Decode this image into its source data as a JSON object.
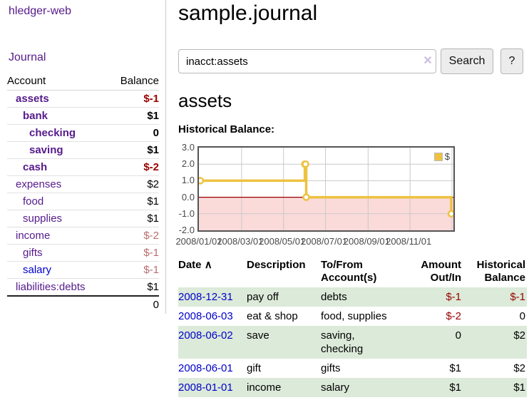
{
  "sidebar": {
    "app_title": "hledger-web",
    "nav": {
      "journal": "Journal"
    },
    "accounts_table": {
      "headers": {
        "account": "Account",
        "balance": "Balance"
      },
      "rows": [
        {
          "account": "assets",
          "balance": "$-1"
        },
        {
          "account": "bank",
          "balance": "$1"
        },
        {
          "account": "checking",
          "balance": "0"
        },
        {
          "account": "saving",
          "balance": "$1"
        },
        {
          "account": "cash",
          "balance": "$-2"
        },
        {
          "account": "expenses",
          "balance": "$2"
        },
        {
          "account": "food",
          "balance": "$1"
        },
        {
          "account": "supplies",
          "balance": "$1"
        },
        {
          "account": "income",
          "balance": "$-2"
        },
        {
          "account": "gifts",
          "balance": "$-1"
        },
        {
          "account": "salary",
          "balance": "$-1"
        },
        {
          "account": "liabilities:debts",
          "balance": "$1"
        }
      ],
      "total": "0"
    }
  },
  "main": {
    "title": "sample.journal",
    "search": {
      "value": "inacct:assets",
      "clear_icon": "✕",
      "button": "Search",
      "help_button": "?"
    },
    "account_heading": "assets",
    "chart_label": "Historical Balance:",
    "register_table": {
      "headers": {
        "date": "Date",
        "sort_indicator": "∧",
        "description": "Description",
        "accounts": "To/From Account(s)",
        "amount": "Amount Out/In",
        "balance": "Historical Balance"
      },
      "rows": [
        {
          "date": "2008-12-31",
          "description": "pay off",
          "accounts": "debts",
          "amount": "$-1",
          "balance": "$-1"
        },
        {
          "date": "2008-06-03",
          "description": "eat & shop",
          "accounts": "food, supplies",
          "amount": "$-2",
          "balance": "0"
        },
        {
          "date": "2008-06-02",
          "description": "save",
          "accounts": "saving, checking",
          "amount": "0",
          "balance": "$2"
        },
        {
          "date": "2008-06-01",
          "description": "gift",
          "accounts": "gifts",
          "amount": "$1",
          "balance": "$2"
        },
        {
          "date": "2008-01-01",
          "description": "income",
          "accounts": "salary",
          "amount": "$1",
          "balance": "$1"
        }
      ]
    }
  },
  "chart_data": {
    "type": "line",
    "step": true,
    "title": "Historical Balance",
    "legend": {
      "label": "$",
      "position": "top-right"
    },
    "x_start": "2008-01-01",
    "x_end": "2009-01-01",
    "x_ticks": [
      {
        "date": "2008-01-01",
        "label": "2008/01/01"
      },
      {
        "date": "2008-03-01",
        "label": "2008/03/01"
      },
      {
        "date": "2008-05-01",
        "label": "2008/05/01"
      },
      {
        "date": "2008-07-01",
        "label": "2008/07/01"
      },
      {
        "date": "2008-09-01",
        "label": "2008/09/01"
      },
      {
        "date": "2008-11-01",
        "label": "2008/11/01"
      },
      {
        "date": "2009-01-01",
        "label": ""
      }
    ],
    "y_ticks": [
      "3.0",
      "2.0",
      "1.0",
      "0.0",
      "-1.0",
      "-2.0"
    ],
    "ylim": [
      -2,
      3
    ],
    "series": [
      {
        "name": "$",
        "color": "#edc240",
        "points": [
          [
            "2008-01-01",
            1
          ],
          [
            "2008-06-01",
            2
          ],
          [
            "2008-06-02",
            2
          ],
          [
            "2008-06-03",
            0
          ],
          [
            "2008-12-31",
            -1
          ]
        ]
      }
    ],
    "colors": {
      "negative_region": "#fbdada",
      "zero_line": "#990000",
      "grid": "#c9c9c9",
      "border": "#545454",
      "tick_text": "#4a4a4a"
    }
  }
}
